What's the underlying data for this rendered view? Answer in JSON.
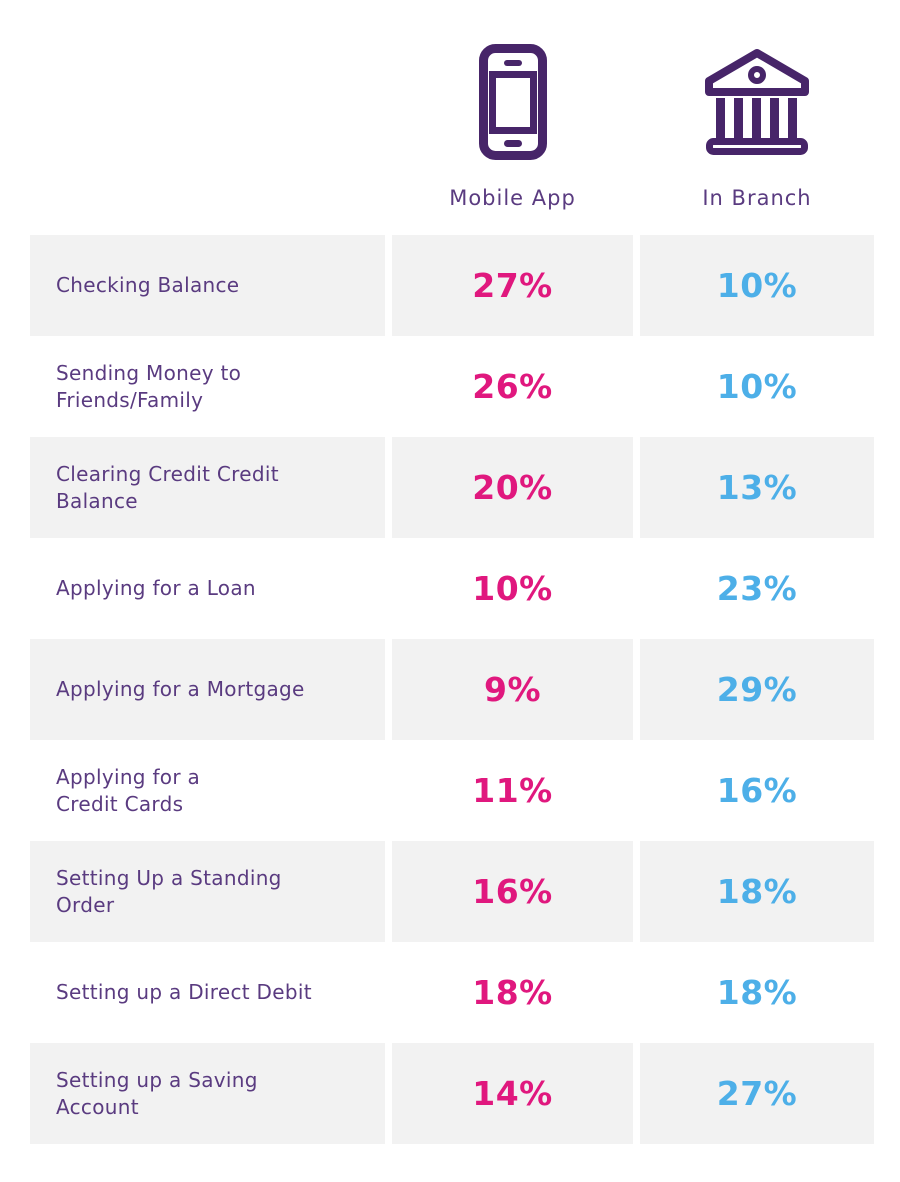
{
  "header": {
    "mobile_app": {
      "label": "Mobile App",
      "icon": "mobile-phone-icon"
    },
    "in_branch": {
      "label": "In Branch",
      "icon": "bank-building-icon"
    }
  },
  "rows": [
    {
      "label": "Checking Balance",
      "mobile_app": "27%",
      "in_branch": "10%"
    },
    {
      "label": "Sending Money to\nFriends/Family",
      "mobile_app": "26%",
      "in_branch": "10%"
    },
    {
      "label": "Clearing Credit Credit\nBalance",
      "mobile_app": "20%",
      "in_branch": "13%"
    },
    {
      "label": "Applying for a Loan",
      "mobile_app": "10%",
      "in_branch": "23%"
    },
    {
      "label": "Applying for a Mortgage",
      "mobile_app": "9%",
      "in_branch": "29%"
    },
    {
      "label": "Applying for a\nCredit Cards",
      "mobile_app": "11%",
      "in_branch": "16%"
    },
    {
      "label": "Setting Up a Standing\nOrder",
      "mobile_app": "16%",
      "in_branch": "18%"
    },
    {
      "label": "Setting up a Direct Debit",
      "mobile_app": "18%",
      "in_branch": "18%"
    },
    {
      "label": "Setting up a Saving\nAccount",
      "mobile_app": "14%",
      "in_branch": "27%"
    }
  ],
  "colors": {
    "mobile_app_value": "#e0187e",
    "in_branch_value": "#4dafe8",
    "label_text": "#5a3b80",
    "icon_purple": "#472569",
    "row_shade": "#f2f2f2"
  },
  "chart_data": {
    "type": "table",
    "title": "",
    "categories": [
      "Checking Balance",
      "Sending Money to Friends/Family",
      "Clearing Credit Credit Balance",
      "Applying for a Loan",
      "Applying for a Mortgage",
      "Applying for a Credit Cards",
      "Setting Up a Standing Order",
      "Setting up a Direct Debit",
      "Setting up a Saving Account"
    ],
    "series": [
      {
        "name": "Mobile App",
        "unit": "%",
        "color": "#e0187e",
        "values": [
          27,
          26,
          20,
          10,
          9,
          11,
          16,
          18,
          14
        ]
      },
      {
        "name": "In Branch",
        "unit": "%",
        "color": "#4dafe8",
        "values": [
          10,
          10,
          13,
          23,
          29,
          16,
          18,
          18,
          27
        ]
      }
    ],
    "legend_position": "top",
    "grid": false
  }
}
